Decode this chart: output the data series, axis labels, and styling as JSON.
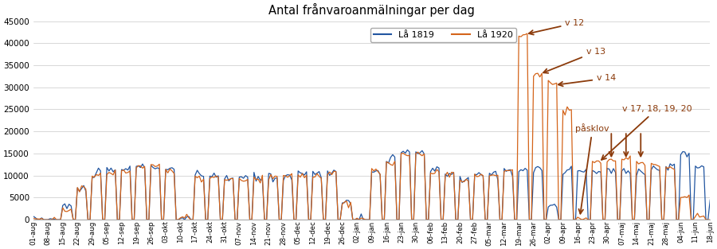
{
  "title": "Antal frånvaroanmälningar per dag",
  "legend_labels": [
    "Lå 1819",
    "Lå 1920"
  ],
  "line_colors": [
    "#2155a0",
    "#d4641a"
  ],
  "ylim": [
    0,
    45000
  ],
  "yticks": [
    0,
    5000,
    10000,
    15000,
    20000,
    25000,
    30000,
    35000,
    40000,
    45000
  ],
  "xtick_labels": [
    "01-aug",
    "08-aug",
    "15-aug",
    "22-aug",
    "29-aug",
    "05-sep",
    "12-sep",
    "19-sep",
    "26-sep",
    "03-okt",
    "10-okt",
    "17-okt",
    "24-okt",
    "31-okt",
    "07-nov",
    "14-nov",
    "21-nov",
    "28-nov",
    "05-dec",
    "12-dec",
    "19-dec",
    "26-dec",
    "02-jan",
    "09-jan",
    "16-jan",
    "23-jan",
    "30-jan",
    "06-feb",
    "13-feb",
    "20-feb",
    "27-feb",
    "05-mar",
    "12-mar",
    "19-mar",
    "26-mar",
    "02-apr",
    "09-apr",
    "16-apr",
    "23-apr",
    "30-apr",
    "07-maj",
    "14-maj",
    "21-maj",
    "28-maj",
    "04-jun",
    "11-jun",
    "18-jun"
  ],
  "background_color": "#ffffff",
  "grid_color": "#c8c8c8",
  "figsize": [
    9.0,
    3.13
  ],
  "dpi": 100,
  "annotation_color": "#8B3A0A"
}
